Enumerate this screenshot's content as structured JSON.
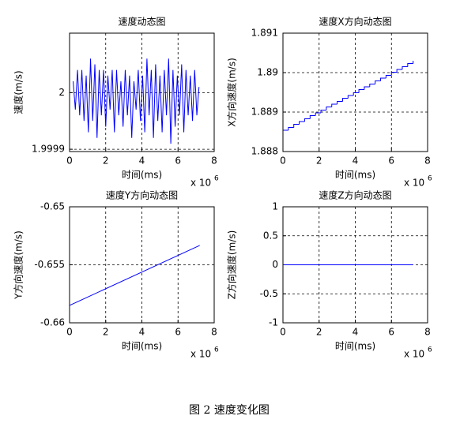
{
  "caption": "图 2 速度变化图",
  "chart_data": [
    {
      "type": "line",
      "title": "速度动态图",
      "xlabel": "时间(ms)",
      "ylabel": "速度(m/s)",
      "x_scale_label": "x 10",
      "x_scale_exponent": "6",
      "xlim": [
        0,
        8
      ],
      "xticks": [
        0,
        2,
        4,
        6,
        8
      ],
      "ylim": [
        1.999896,
        2.000105
      ],
      "yticks": [
        1.9999,
        2
      ],
      "grid": true,
      "color": "#0000ff",
      "x": [
        0.2,
        0.32,
        0.44,
        0.56,
        0.68,
        0.8,
        0.92,
        1.04,
        1.16,
        1.28,
        1.4,
        1.52,
        1.64,
        1.76,
        1.88,
        2,
        2.12,
        2.24,
        2.36,
        2.48,
        2.6,
        2.72,
        2.84,
        2.96,
        3.08,
        3.2,
        3.32,
        3.44,
        3.56,
        3.68,
        3.8,
        3.92,
        4.04,
        4.16,
        4.28,
        4.4,
        4.52,
        4.64,
        4.76,
        4.88,
        5,
        5.12,
        5.24,
        5.36,
        5.48,
        5.6,
        5.72,
        5.84,
        5.96,
        6.08,
        6.2,
        6.32,
        6.44,
        6.56,
        6.68,
        6.8,
        6.92,
        7.04,
        7.16
      ],
      "values": [
        2.00002,
        1.99997,
        2.00004,
        1.99996,
        2.00004,
        1.99995,
        2.00003,
        1.99993,
        2.00006,
        1.99995,
        2.00005,
        1.99992,
        2.00004,
        1.99996,
        2.00004,
        1.99994,
        2.00003,
        1.99997,
        2.00004,
        1.99993,
        2.00004,
        1.99996,
        2.00002,
        1.99994,
        2.00004,
        1.99996,
        2.00003,
        1.99992,
        2.00002,
        1.99997,
        2.00004,
        1.99995,
        2.00003,
        1.99993,
        2.00006,
        1.99996,
        2.00004,
        1.99992,
        2.00005,
        1.99995,
        2.00003,
        1.99993,
        2.00004,
        1.99996,
        2.00006,
        1.99991,
        2.00004,
        1.99994,
        2.00003,
        1.99996,
        2.00005,
        1.99993,
        2.00004,
        1.99996,
        2.00003,
        1.99995,
        2.00004,
        1.99996,
        2.00001
      ]
    },
    {
      "type": "line",
      "drawstyle": "steps-post",
      "title": "速度X方向动态图",
      "xlabel": "时间(ms)",
      "ylabel": "X方向速度(m/s)",
      "x_scale_label": "x 10",
      "x_scale_exponent": "6",
      "xlim": [
        0,
        8
      ],
      "xticks": [
        0,
        2,
        4,
        6,
        8
      ],
      "ylim": [
        1.888,
        1.891
      ],
      "yticks": [
        1.888,
        1.889,
        1.89,
        1.891
      ],
      "grid": true,
      "color": "#0000ff",
      "x": [
        0,
        0.3,
        0.6,
        0.9,
        1.2,
        1.5,
        1.8,
        2.1,
        2.4,
        2.7,
        3,
        3.3,
        3.6,
        3.9,
        4.2,
        4.5,
        4.8,
        5.1,
        5.4,
        5.7,
        6,
        6.3,
        6.6,
        6.9,
        7.2
      ],
      "values": [
        1.88854,
        1.88861,
        1.88869,
        1.88876,
        1.88883,
        1.88891,
        1.88898,
        1.88905,
        1.88913,
        1.8892,
        1.88927,
        1.88935,
        1.88942,
        1.88949,
        1.88957,
        1.88964,
        1.88971,
        1.88979,
        1.88986,
        1.88993,
        1.89001,
        1.89008,
        1.89015,
        1.89023,
        1.8903
      ]
    },
    {
      "type": "line",
      "title": "速度Y方向动态图",
      "xlabel": "时间(ms)",
      "ylabel": "Y方向速度(m/s)",
      "x_scale_label": "x 10",
      "x_scale_exponent": "6",
      "xlim": [
        0,
        8
      ],
      "xticks": [
        0,
        2,
        4,
        6,
        8
      ],
      "ylim": [
        -0.66,
        -0.65
      ],
      "yticks": [
        -0.66,
        -0.655,
        -0.65
      ],
      "grid": true,
      "color": "#0000ff",
      "x": [
        0,
        7.2
      ],
      "values": [
        -0.6585,
        -0.65333
      ]
    },
    {
      "type": "line",
      "title": "速度Z方向动态图",
      "xlabel": "时间(ms)",
      "ylabel": "Z方向速度(m/s)",
      "x_scale_label": "x 10",
      "x_scale_exponent": "6",
      "xlim": [
        0,
        8
      ],
      "xticks": [
        0,
        2,
        4,
        6,
        8
      ],
      "ylim": [
        -1,
        1
      ],
      "yticks": [
        -1,
        -0.5,
        0,
        0.5,
        1
      ],
      "grid": true,
      "color": "#0000ff",
      "x": [
        0,
        7.2
      ],
      "values": [
        0,
        0
      ]
    }
  ]
}
